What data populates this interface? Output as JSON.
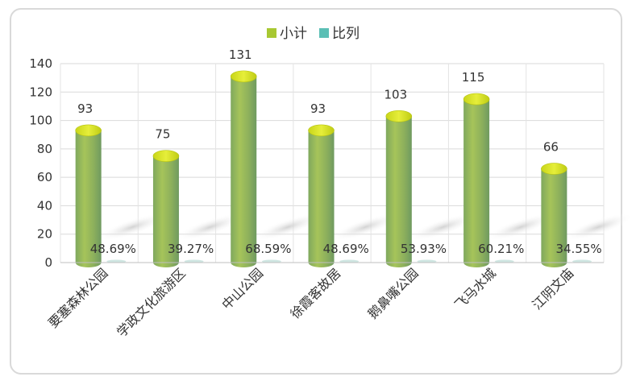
{
  "chart_data": {
    "type": "bar",
    "title": "",
    "xlabel": "",
    "ylabel": "",
    "ylim": [
      0,
      140
    ],
    "yticks": [
      0,
      20,
      40,
      60,
      80,
      100,
      120,
      140
    ],
    "grid": true,
    "legend_position": "top",
    "categories": [
      "要塞森林公园",
      "学政文化旅游区",
      "中山公园",
      "徐霞客故居",
      "鹅鼻嘴公园",
      "飞马水城",
      "江阴文庙"
    ],
    "series": [
      {
        "name": "小计",
        "color": "#a8c832",
        "values": [
          93,
          75,
          131,
          93,
          103,
          115,
          66
        ]
      },
      {
        "name": "比列",
        "color": "#5bbfb5",
        "values": [
          0.4869,
          0.3927,
          0.6859,
          0.4869,
          0.5393,
          0.6021,
          0.3455
        ],
        "labels": [
          "48.69%",
          "39.27%",
          "68.59%",
          "48.69%",
          "53.93%",
          "60.21%",
          "34.55%"
        ]
      }
    ]
  }
}
